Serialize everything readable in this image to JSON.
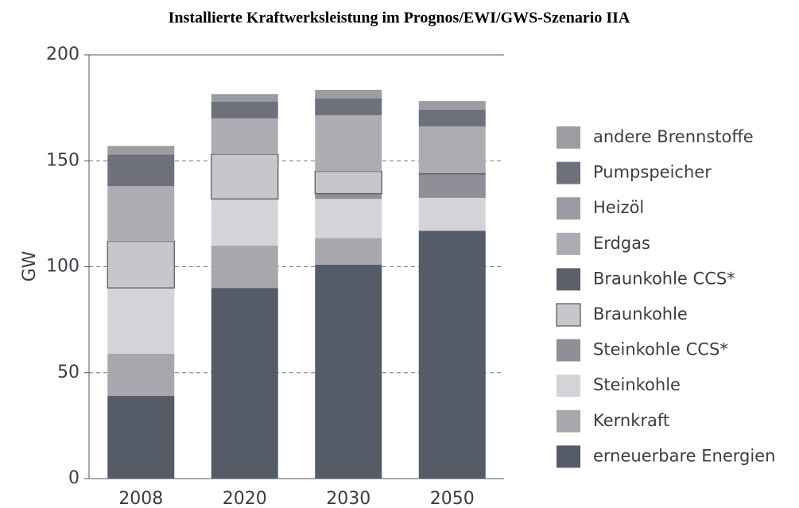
{
  "chart_data": {
    "type": "stacked_bar",
    "title": "Installierte Kraftwerksleistung im Prognos/EWI/GWS-Szenario IIA",
    "y_label": "GW",
    "categories": [
      "2008",
      "2020",
      "2030",
      "2050"
    ],
    "ylim": [
      0,
      200
    ],
    "yticks": [
      0,
      50,
      100,
      150,
      200
    ],
    "grid": true,
    "series": [
      {
        "name": "erneuerbare Energien",
        "color": "#555b67",
        "values": [
          39,
          90,
          101,
          117
        ]
      },
      {
        "name": "Kernkraft",
        "color": "#a7a7ad",
        "values": [
          20,
          20,
          12.5,
          0
        ]
      },
      {
        "name": "Steinkohle",
        "color": "#d4d4d8",
        "values": [
          31,
          22,
          18.5,
          15.5
        ]
      },
      {
        "name": "Steinkohle CCS*",
        "color": "#8e8f97",
        "values": [
          0,
          0,
          2.5,
          11
        ]
      },
      {
        "name": "Braunkohle",
        "color": "#c6c6cb",
        "border": "#5b5f6a",
        "values": [
          22,
          21,
          10.5,
          0
        ]
      },
      {
        "name": "Braunkohle CCS*",
        "color": "#5b5f6a",
        "values": [
          0,
          0,
          0,
          0.7
        ]
      },
      {
        "name": "Erdgas",
        "color": "#acacb2",
        "values": [
          26,
          17,
          26.5,
          22
        ]
      },
      {
        "name": "Heizöl",
        "color": "#9a9ba2",
        "values": [
          0,
          0,
          0,
          0
        ]
      },
      {
        "name": "Pumpspeicher",
        "color": "#6e717b",
        "values": [
          15,
          8,
          8,
          8
        ]
      },
      {
        "name": "andere Brennstoffe",
        "color": "#9c9ca3",
        "values": [
          4,
          3.5,
          4,
          4
        ]
      }
    ]
  }
}
